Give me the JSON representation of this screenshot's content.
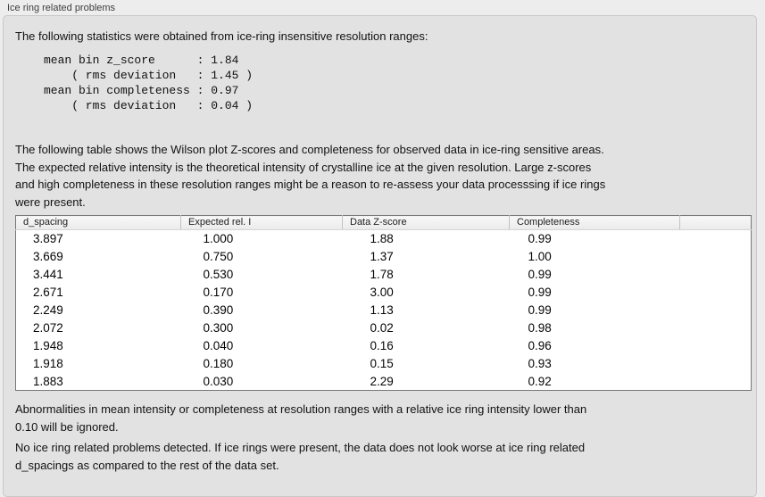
{
  "section": {
    "title": "Ice ring related problems"
  },
  "panel": {
    "intro": "The following statistics were obtained from ice-ring insensitive resolution ranges:",
    "stats_block": "mean bin z_score      : 1.84\n    ( rms deviation   : 1.45 )\nmean bin completeness : 0.97\n    ( rms deviation   : 0.04 )",
    "description": "The following table shows the Wilson plot Z-scores and completeness for observed data in ice-ring sensitive areas.\nThe expected relative intensity is the theoretical intensity of crystalline ice at the given resolution. Large z-scores\nand high completeness in these resolution ranges might be a reason to re-assess your data processsing if ice rings\nwere present.",
    "table": {
      "columns": [
        "d_spacing",
        "Expected rel. I",
        "Data Z-score",
        "Completeness"
      ],
      "rows": [
        [
          "3.897",
          "1.000",
          "1.88",
          "0.99"
        ],
        [
          "3.669",
          "0.750",
          "1.37",
          "1.00"
        ],
        [
          "3.441",
          "0.530",
          "1.78",
          "0.99"
        ],
        [
          "2.671",
          "0.170",
          "3.00",
          "0.99"
        ],
        [
          "2.249",
          "0.390",
          "1.13",
          "0.99"
        ],
        [
          "2.072",
          "0.300",
          "0.02",
          "0.98"
        ],
        [
          "1.948",
          "0.040",
          "0.16",
          "0.96"
        ],
        [
          "1.918",
          "0.180",
          "0.15",
          "0.93"
        ],
        [
          "1.883",
          "0.030",
          "2.29",
          "0.92"
        ]
      ]
    },
    "ignore_note": "Abnormalities in mean intensity or completeness at resolution ranges with a relative ice ring intensity lower than\n0.10 will be ignored.",
    "conclusion": "No ice ring related problems detected. If ice rings were present, the data does not look worse at ice ring related\nd_spacings as compared to the rest of the data set."
  },
  "colors": {
    "page_bg": "#ededed",
    "panel_bg": "#e2e2e2",
    "panel_border": "#c8c8c8",
    "table_border": "#787878",
    "table_row_bg": "#ffffff"
  }
}
